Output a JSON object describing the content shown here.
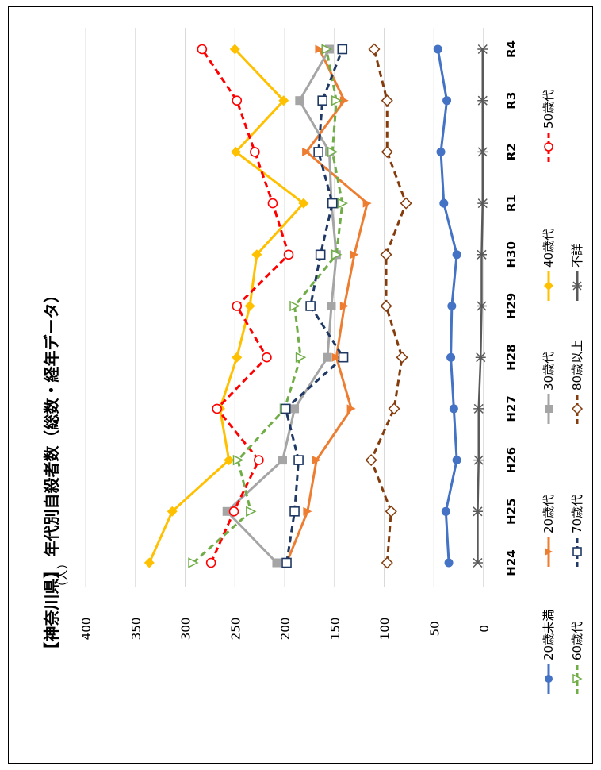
{
  "chart_data": {
    "type": "line",
    "title": "【神奈川県】 年代別自殺者数（総数・経年データ）",
    "ylabel": "（人）",
    "ylim": [
      0,
      400
    ],
    "yticks": [
      0,
      50,
      100,
      150,
      200,
      250,
      300,
      350,
      400
    ],
    "categories": [
      "H24",
      "H25",
      "H26",
      "H27",
      "H28",
      "H29",
      "H30",
      "R1",
      "R2",
      "R3",
      "R4"
    ],
    "grid": true,
    "rotation": "chart rotated 90° clockwise; value axis runs top-to-bottom decreasing",
    "legend_position": "bottom",
    "series": [
      {
        "name": "20歳未満",
        "color": "#4472C4",
        "marker": "circle-filled",
        "dash": "solid",
        "values": [
          35,
          38,
          27,
          30,
          33,
          32,
          27,
          40,
          43,
          37,
          46
        ]
      },
      {
        "name": "20歳代",
        "color": "#ED7D31",
        "marker": "triangle-filled",
        "dash": "solid",
        "values": [
          198,
          177,
          168,
          133,
          148,
          140,
          130,
          117,
          178,
          140,
          165
        ]
      },
      {
        "name": "30歳代",
        "color": "#A5A5A5",
        "marker": "square-filled",
        "dash": "solid",
        "values": [
          208,
          258,
          202,
          190,
          157,
          153,
          148,
          153,
          155,
          185,
          155
        ]
      },
      {
        "name": "40歳代",
        "color": "#FFC000",
        "marker": "diamond-filled",
        "dash": "solid",
        "values": [
          336,
          313,
          256,
          265,
          248,
          235,
          228,
          181,
          249,
          201,
          250
        ]
      },
      {
        "name": "50歳代",
        "color": "#FF0000",
        "marker": "circle-open",
        "dash": "dash",
        "values": [
          274,
          251,
          226,
          268,
          218,
          248,
          196,
          212,
          230,
          248,
          283
        ]
      },
      {
        "name": "60歳代",
        "color": "#70AD47",
        "marker": "triangle-open",
        "dash": "dash",
        "values": [
          292,
          234,
          247,
          200,
          184,
          190,
          148,
          142,
          152,
          148,
          158
        ]
      },
      {
        "name": "70歳代",
        "color": "#1F3864",
        "marker": "square-open",
        "dash": "dash",
        "values": [
          198,
          190,
          186,
          199,
          141,
          174,
          164,
          152,
          166,
          162,
          142
        ]
      },
      {
        "name": "80歳以上",
        "color": "#843C0C",
        "marker": "diamond-open",
        "dash": "dash",
        "values": [
          97,
          93,
          113,
          90,
          82,
          98,
          98,
          78,
          97,
          97,
          110
        ]
      },
      {
        "name": "不詳",
        "color": "#595959",
        "marker": "star",
        "dash": "solid",
        "values": [
          6,
          6,
          5,
          5,
          3,
          2,
          2,
          1,
          1,
          1,
          1
        ]
      }
    ]
  }
}
